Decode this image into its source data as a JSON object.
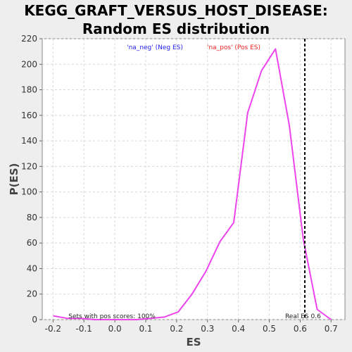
{
  "chart_data": {
    "type": "line",
    "title_lines": [
      "KEGG_GRAFT_VERSUS_HOST_DISEASE:",
      "Random ES distribution"
    ],
    "xlabel": "ES",
    "ylabel": "P(ES)",
    "xlim": [
      -0.235,
      0.745
    ],
    "ylim": [
      0,
      220
    ],
    "xticks": [
      -0.2,
      -0.1,
      0.0,
      0.1,
      0.2,
      0.3,
      0.4,
      0.5,
      0.6,
      0.7
    ],
    "xtick_labels": [
      "-0.2",
      "-0.1",
      "0.0",
      "0.1",
      "0.2",
      "0.3",
      "0.4",
      "0.5",
      "0.6",
      "0.7"
    ],
    "yticks": [
      0,
      20,
      40,
      60,
      80,
      100,
      120,
      140,
      160,
      180,
      200,
      220
    ],
    "ytick_labels": [
      "0",
      "20",
      "40",
      "60",
      "80",
      "100",
      "120",
      "140",
      "160",
      "180",
      "200",
      "220"
    ],
    "grid": true,
    "legend": {
      "placement": "top",
      "entries": [
        {
          "label": "'na_neg' (Neg ES)",
          "color": "#2222ee"
        },
        {
          "label": "'na_pos' (Pos ES)",
          "color": "#ee2222"
        }
      ]
    },
    "series": [
      {
        "color": "#ee44ee",
        "x": [
          -0.2,
          -0.155,
          -0.11,
          -0.065,
          -0.02,
          0.025,
          0.07,
          0.115,
          0.16,
          0.205,
          0.25,
          0.295,
          0.34,
          0.385,
          0.43,
          0.475,
          0.52,
          0.565,
          0.61,
          0.655,
          0.7
        ],
        "y": [
          3,
          1,
          1,
          0,
          0,
          0,
          0,
          1,
          2,
          6,
          20,
          38,
          61,
          76,
          162,
          195,
          212,
          152,
          63,
          8,
          0
        ]
      }
    ],
    "annotations": {
      "real_es_value": 0.615,
      "real_es_label": "Real ES 0.6",
      "sets_label": "Sets with pos scores: 100%"
    },
    "colors": {
      "plot_background": "#ffffff",
      "page_background": "#eeeeee",
      "grid": "#d8d8d8",
      "real_es_line": "#000000"
    }
  }
}
